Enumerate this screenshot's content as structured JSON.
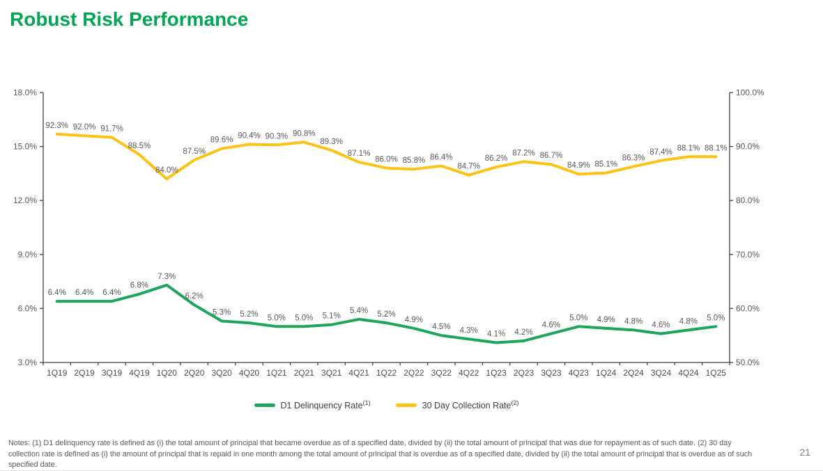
{
  "title": "Robust Risk Performance",
  "page_number": "21",
  "notes": "Notes: (1) D1 delinquency rate is defined as (i) the total amount of principal that became overdue as of a specified date, divided by (ii) the total amount of principal that was due for repayment as of such date. (2) 30 day collection rate is defined as (i) the amount of principal that is repaid in one month among the total amount of principal that is overdue as of a specified date, divided by (ii) the total amount of principal that is overdue as of such specified date.",
  "legend": {
    "items": [
      {
        "label": "D1 Delinquency Rate",
        "sup": "(1)"
      },
      {
        "label": "30 Day Collection Rate",
        "sup": "(2)"
      }
    ]
  },
  "colors": {
    "title_green": "#00A651",
    "series_green": "#1BA65C",
    "series_gold": "#FCC216",
    "axis_line": "#404040",
    "label_gray": "#595959"
  },
  "chart_data": {
    "type": "line",
    "title": "Robust Risk Performance",
    "grid": false,
    "legend_position": "bottom",
    "categories": [
      "1Q19",
      "2Q19",
      "3Q19",
      "4Q19",
      "1Q20",
      "2Q20",
      "3Q20",
      "4Q20",
      "1Q21",
      "2Q21",
      "3Q21",
      "4Q21",
      "1Q22",
      "2Q22",
      "3Q22",
      "4Q22",
      "1Q23",
      "2Q23",
      "3Q23",
      "4Q23",
      "1Q24",
      "2Q24",
      "3Q24",
      "4Q24",
      "1Q25"
    ],
    "series": [
      {
        "name": "D1 Delinquency Rate",
        "axis": "left",
        "color": "#1BA65C",
        "values": [
          6.4,
          6.4,
          6.4,
          6.8,
          7.3,
          6.2,
          5.3,
          5.2,
          5.0,
          5.0,
          5.1,
          5.4,
          5.2,
          4.9,
          4.5,
          4.3,
          4.1,
          4.2,
          4.6,
          5.0,
          4.9,
          4.8,
          4.6,
          4.8,
          5.0
        ]
      },
      {
        "name": "30 Day Collection Rate",
        "axis": "right",
        "color": "#FCC216",
        "values": [
          92.3,
          92.0,
          91.7,
          88.5,
          84.0,
          87.5,
          89.6,
          90.4,
          90.3,
          90.8,
          89.3,
          87.1,
          86.0,
          85.8,
          86.4,
          84.7,
          86.2,
          87.2,
          86.7,
          84.9,
          85.1,
          86.3,
          87.4,
          88.1,
          88.1
        ]
      }
    ],
    "left_axis": {
      "min": 3,
      "max": 18,
      "ticks": [
        "18.0%",
        "15.0%",
        "12.0%",
        "9.0%",
        "6.0%",
        "3.0%"
      ]
    },
    "right_axis": {
      "min": 50,
      "max": 100,
      "ticks": [
        "100.0%",
        "90.0%",
        "80.0%",
        "70.0%",
        "60.0%",
        "50.0%"
      ]
    },
    "value_label_suffix": "%"
  }
}
